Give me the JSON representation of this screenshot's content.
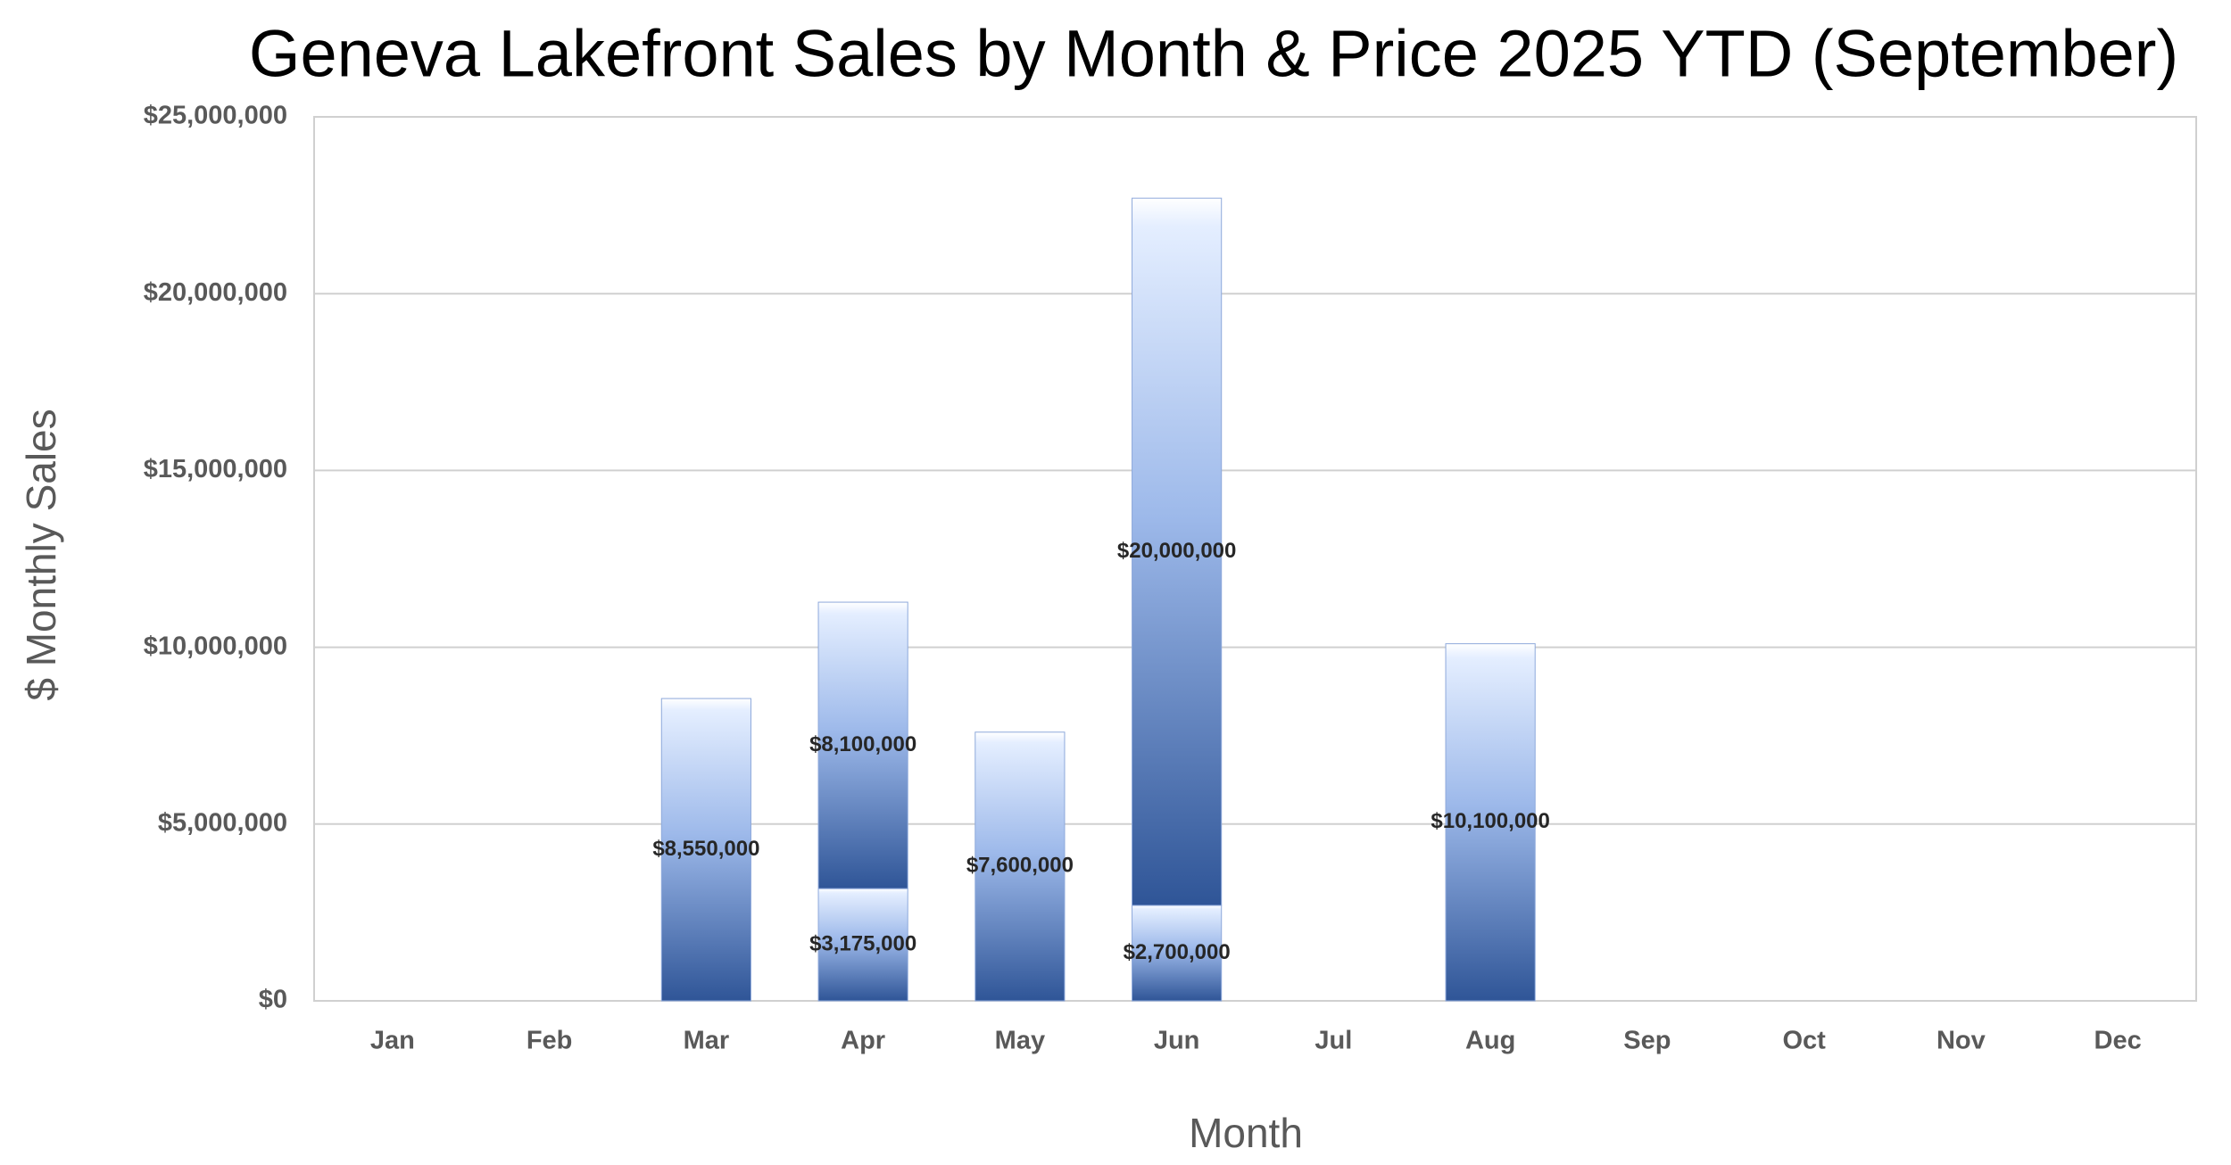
{
  "chart_data": {
    "type": "stacked_bar",
    "title": "Geneva Lakefront Sales by Month & Price 2025 YTD (September)",
    "x_label": "Month",
    "y_label": "$ Monthly Sales",
    "categories": [
      "Jan",
      "Feb",
      "Mar",
      "Apr",
      "May",
      "Jun",
      "Jul",
      "Aug",
      "Sep",
      "Oct",
      "Nov",
      "Dec"
    ],
    "series": [
      {
        "color": "#2f5597",
        "values": [
          null,
          null,
          8550000,
          3175000,
          7600000,
          2700000,
          null,
          10100000,
          null,
          null,
          null,
          null
        ],
        "value_labels": [
          null,
          null,
          "$8,550,000",
          "$3,175,000",
          "$7,600,000",
          "$2,700,000",
          null,
          "$10,100,000",
          null,
          null,
          null,
          null
        ]
      },
      {
        "color": "#2f5597",
        "values": [
          null,
          null,
          null,
          8100000,
          null,
          20000000,
          null,
          null,
          null,
          null,
          null,
          null
        ],
        "value_labels": [
          null,
          null,
          null,
          "$8,100,000",
          null,
          "$20,000,000",
          null,
          null,
          null,
          null,
          null,
          null
        ]
      }
    ],
    "ylim": [
      0,
      25000000
    ],
    "yticks": [
      {
        "value": 0,
        "label": "$0"
      },
      {
        "value": 5000000,
        "label": "$5,000,000"
      },
      {
        "value": 10000000,
        "label": "$10,000,000"
      },
      {
        "value": 15000000,
        "label": "$15,000,000"
      },
      {
        "value": 20000000,
        "label": "$20,000,000"
      },
      {
        "value": 25000000,
        "label": "$25,000,000"
      }
    ],
    "grid": true
  }
}
